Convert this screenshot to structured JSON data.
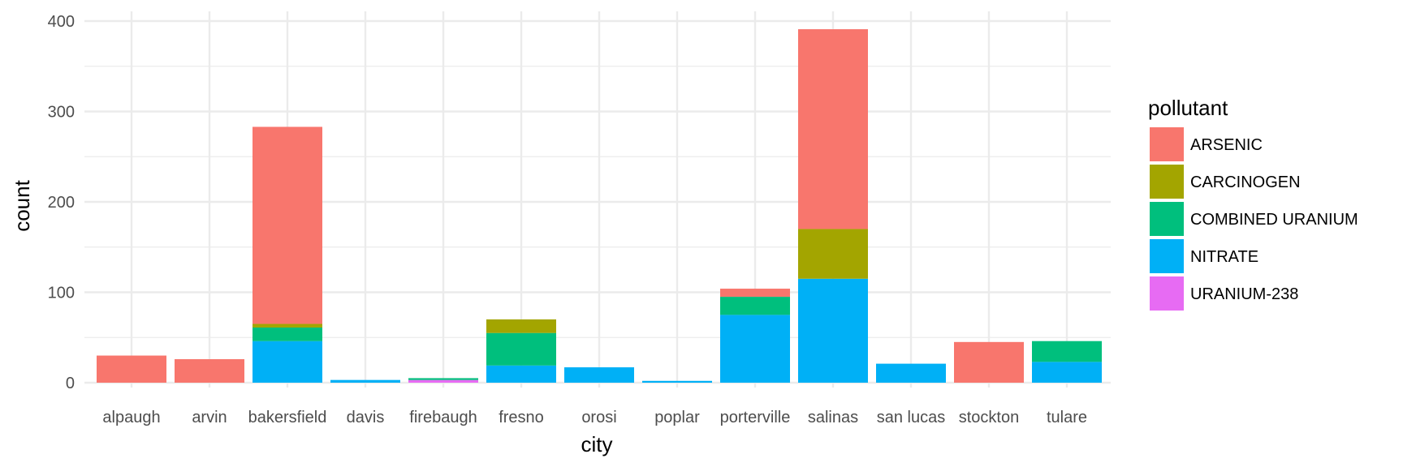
{
  "chart_data": {
    "type": "bar",
    "stacked": true,
    "title": "",
    "xlabel": "city",
    "ylabel": "count",
    "ylim": [
      0,
      400
    ],
    "yticks": [
      0,
      100,
      200,
      300,
      400
    ],
    "grid": true,
    "legend_title": "pollutant",
    "legend_position": "right",
    "categories": [
      "alpaugh",
      "arvin",
      "bakersfield",
      "davis",
      "firebaugh",
      "fresno",
      "orosi",
      "poplar",
      "porterville",
      "salinas",
      "san lucas",
      "stockton",
      "tulare"
    ],
    "series": [
      {
        "name": "ARSENIC",
        "color": "#F8766D",
        "values": [
          30,
          26,
          218,
          0,
          0,
          0,
          0,
          0,
          9,
          221,
          0,
          45,
          0
        ]
      },
      {
        "name": "CARCINOGEN",
        "color": "#A3A500",
        "values": [
          0,
          0,
          4,
          0,
          0,
          15,
          0,
          0,
          0,
          55,
          0,
          0,
          0
        ]
      },
      {
        "name": "COMBINED URANIUM",
        "color": "#00BF7D",
        "values": [
          0,
          0,
          15,
          0,
          2,
          36,
          0,
          0,
          20,
          0,
          0,
          0,
          23
        ]
      },
      {
        "name": "NITRATE",
        "color": "#00B0F6",
        "values": [
          0,
          0,
          46,
          3,
          0,
          19,
          17,
          2,
          75,
          115,
          21,
          0,
          23
        ]
      },
      {
        "name": "URANIUM-238",
        "color": "#E76BF3",
        "values": [
          0,
          0,
          0,
          0,
          3,
          0,
          0,
          0,
          0,
          0,
          0,
          0,
          0
        ]
      }
    ]
  }
}
